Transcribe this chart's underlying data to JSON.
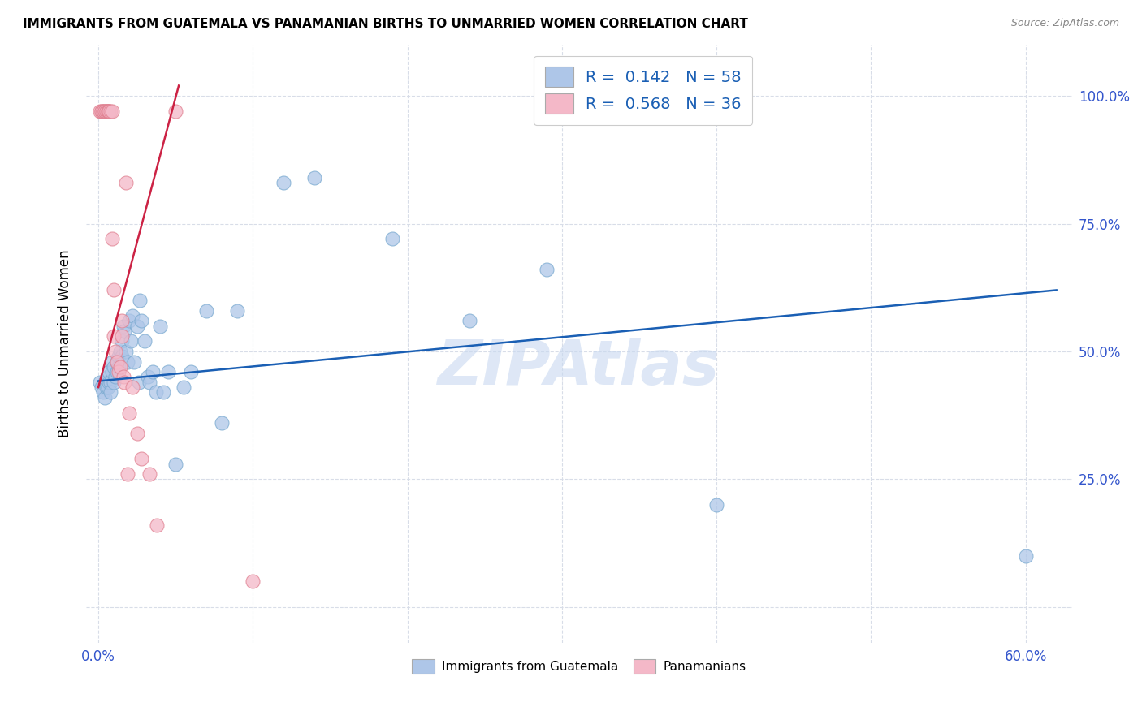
{
  "title": "IMMIGRANTS FROM GUATEMALA VS PANAMANIAN BIRTHS TO UNMARRIED WOMEN CORRELATION CHART",
  "source": "Source: ZipAtlas.com",
  "ylabel": "Births to Unmarried Women",
  "xlim": [
    -0.008,
    0.63
  ],
  "ylim": [
    -0.07,
    1.1
  ],
  "blue_color": "#aec6e8",
  "pink_color": "#f4b8c8",
  "blue_edge_color": "#7aaad0",
  "pink_edge_color": "#e08090",
  "blue_line_color": "#1a5fb4",
  "pink_line_color": "#cc2244",
  "tick_color": "#3355cc",
  "watermark": "ZIPAtlas",
  "watermark_color": "#c8d8f0",
  "grid_color": "#d8dde8",
  "blue_scatter_x": [
    0.001,
    0.002,
    0.003,
    0.004,
    0.004,
    0.005,
    0.005,
    0.006,
    0.006,
    0.007,
    0.007,
    0.008,
    0.008,
    0.009,
    0.009,
    0.01,
    0.01,
    0.011,
    0.012,
    0.012,
    0.013,
    0.013,
    0.014,
    0.015,
    0.015,
    0.016,
    0.017,
    0.018,
    0.019,
    0.02,
    0.021,
    0.022,
    0.023,
    0.025,
    0.026,
    0.027,
    0.028,
    0.03,
    0.032,
    0.033,
    0.035,
    0.037,
    0.04,
    0.042,
    0.045,
    0.05,
    0.055,
    0.06,
    0.07,
    0.08,
    0.09,
    0.12,
    0.14,
    0.19,
    0.24,
    0.29,
    0.4,
    0.6
  ],
  "blue_scatter_y": [
    0.44,
    0.43,
    0.42,
    0.44,
    0.41,
    0.44,
    0.43,
    0.45,
    0.43,
    0.46,
    0.44,
    0.44,
    0.42,
    0.48,
    0.46,
    0.47,
    0.44,
    0.45,
    0.48,
    0.46,
    0.49,
    0.47,
    0.5,
    0.52,
    0.49,
    0.55,
    0.54,
    0.5,
    0.48,
    0.56,
    0.52,
    0.57,
    0.48,
    0.55,
    0.44,
    0.6,
    0.56,
    0.52,
    0.45,
    0.44,
    0.46,
    0.42,
    0.55,
    0.42,
    0.46,
    0.28,
    0.43,
    0.46,
    0.58,
    0.36,
    0.58,
    0.83,
    0.84,
    0.72,
    0.56,
    0.66,
    0.2,
    0.1
  ],
  "pink_scatter_x": [
    0.001,
    0.002,
    0.002,
    0.003,
    0.003,
    0.004,
    0.004,
    0.005,
    0.005,
    0.006,
    0.006,
    0.007,
    0.007,
    0.008,
    0.009,
    0.009,
    0.01,
    0.01,
    0.011,
    0.012,
    0.013,
    0.014,
    0.015,
    0.015,
    0.016,
    0.017,
    0.018,
    0.019,
    0.02,
    0.022,
    0.025,
    0.028,
    0.033,
    0.038,
    0.05,
    0.1
  ],
  "pink_scatter_y": [
    0.97,
    0.97,
    0.97,
    0.97,
    0.97,
    0.97,
    0.97,
    0.97,
    0.97,
    0.97,
    0.97,
    0.97,
    0.97,
    0.97,
    0.97,
    0.72,
    0.62,
    0.53,
    0.5,
    0.48,
    0.46,
    0.47,
    0.56,
    0.53,
    0.45,
    0.44,
    0.83,
    0.26,
    0.38,
    0.43,
    0.34,
    0.29,
    0.26,
    0.16,
    0.97,
    0.05
  ],
  "blue_trend_x": [
    0.0,
    0.62
  ],
  "blue_trend_y": [
    0.442,
    0.62
  ],
  "pink_trend_x": [
    0.0,
    0.052
  ],
  "pink_trend_y": [
    0.43,
    1.02
  ],
  "x_tick_positions": [
    0.0,
    0.1,
    0.2,
    0.3,
    0.4,
    0.5,
    0.6
  ],
  "x_tick_labels": [
    "0.0%",
    "",
    "",
    "",
    "",
    "",
    "60.0%"
  ],
  "y_tick_positions": [
    0.0,
    0.25,
    0.5,
    0.75,
    1.0
  ],
  "y_tick_labels": [
    "",
    "25.0%",
    "50.0%",
    "75.0%",
    "100.0%"
  ],
  "legend_r1_text": "R =  0.142   N = 58",
  "legend_r2_text": "R =  0.568   N = 36",
  "legend_labels": [
    "Immigrants from Guatemala",
    "Panamanians"
  ]
}
